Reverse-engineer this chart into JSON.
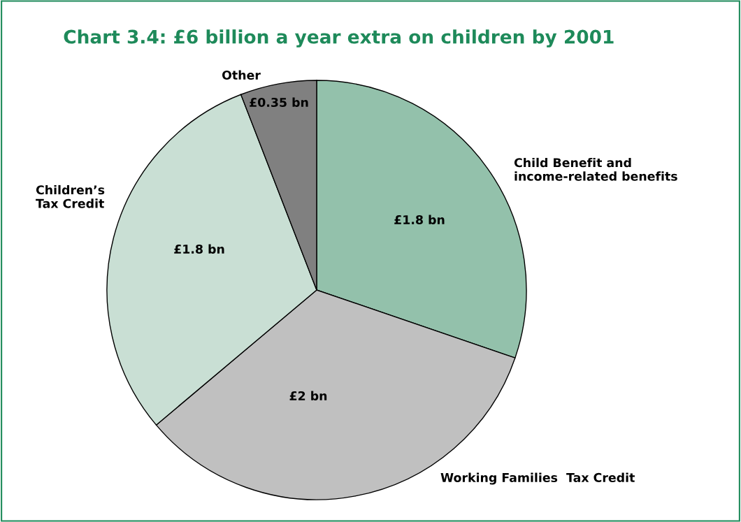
{
  "chart_data": {
    "type": "pie",
    "title": "Chart 3.4: £6 billion a year extra on children by 2001",
    "categories": [
      "Child Benefit and\nincome-related benefits",
      "Working Families  Tax Credit",
      "Children’s\nTax Credit",
      "Other"
    ],
    "values": [
      1.8,
      2,
      1.8,
      0.35
    ],
    "value_labels": [
      "£1.8 bn",
      "£2 bn",
      "£1.8 bn",
      "£0.35 bn"
    ],
    "colors": [
      "#93c1ab",
      "#c0c0c0",
      "#c9dfd4",
      "#808080"
    ],
    "legend": false
  }
}
